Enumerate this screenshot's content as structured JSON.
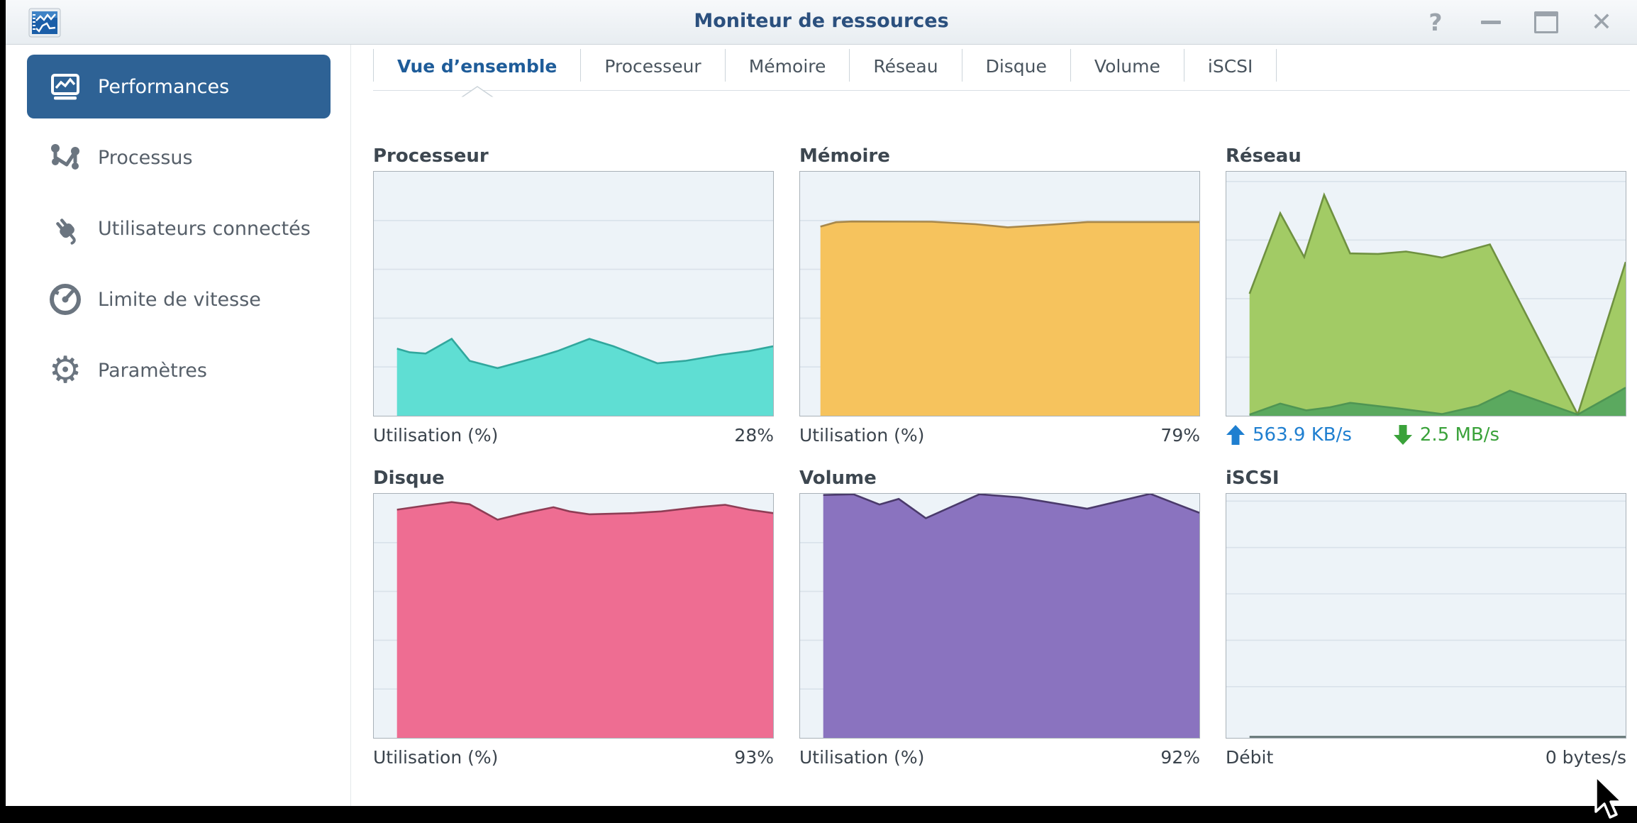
{
  "window": {
    "title": "Moniteur de ressources",
    "controls": {
      "help_label": "?",
      "minimize_name": "minimize",
      "maximize_name": "maximize",
      "close_label": "✕"
    }
  },
  "sidebar": {
    "items": [
      {
        "label": "Performances",
        "icon": "performance-chart-icon",
        "active": true
      },
      {
        "label": "Processus",
        "icon": "process-icon",
        "active": false
      },
      {
        "label": "Utilisateurs connectés",
        "icon": "plug-icon",
        "active": false
      },
      {
        "label": "Limite de vitesse",
        "icon": "speedometer-icon",
        "active": false
      },
      {
        "label": "Paramètres",
        "icon": "gear-icon",
        "active": false
      }
    ]
  },
  "tabs": [
    {
      "label": "Vue d’ensemble",
      "active": true
    },
    {
      "label": "Processeur",
      "active": false
    },
    {
      "label": "Mémoire",
      "active": false
    },
    {
      "label": "Réseau",
      "active": false
    },
    {
      "label": "Disque",
      "active": false
    },
    {
      "label": "Volume",
      "active": false
    },
    {
      "label": "iSCSI",
      "active": false
    }
  ],
  "panels": [
    {
      "id": "cpu",
      "title": "Processeur",
      "footer_label": "Utilisation (%)",
      "footer_value": "28%"
    },
    {
      "id": "memory",
      "title": "Mémoire",
      "footer_label": "Utilisation (%)",
      "footer_value": "79%"
    },
    {
      "id": "network",
      "title": "Réseau",
      "stats": [
        {
          "icon": "upload-arrow-icon",
          "text": "563.9 KB/s",
          "color": "#1f7fd0"
        },
        {
          "icon": "download-arrow-icon",
          "text": "2.5 MB/s",
          "color": "#3aa23a"
        }
      ]
    },
    {
      "id": "disk",
      "title": "Disque",
      "footer_label": "Utilisation (%)",
      "footer_value": "93%"
    },
    {
      "id": "volume",
      "title": "Volume",
      "footer_label": "Utilisation (%)",
      "footer_value": "92%"
    },
    {
      "id": "iscsi",
      "title": "iSCSI",
      "footer_label": "Débit",
      "footer_value": "0 bytes/s"
    }
  ],
  "chart_data": [
    {
      "id": "cpu",
      "type": "area",
      "title": "Processeur",
      "ylabel": "Utilisation (%)",
      "ylim": [
        0,
        100
      ],
      "current_value": "28%",
      "grid": [
        0.2,
        0.4,
        0.6,
        0.8
      ],
      "series": [
        {
          "name": "cpu-usage",
          "fill": "#5fded3",
          "stroke": "#31a79d",
          "points": [
            [
              5.8,
              27.5
            ],
            [
              9,
              26
            ],
            [
              13,
              25.5
            ],
            [
              19.5,
              31.5
            ],
            [
              24,
              22.5
            ],
            [
              31,
              19.5
            ],
            [
              41,
              24
            ],
            [
              46,
              26.5
            ],
            [
              54,
              31.5
            ],
            [
              60,
              28.5
            ],
            [
              71,
              21.5
            ],
            [
              78,
              22.5
            ],
            [
              87,
              25
            ],
            [
              94,
              26.5
            ],
            [
              100,
              28.5
            ]
          ]
        }
      ]
    },
    {
      "id": "memory",
      "type": "area",
      "title": "Mémoire",
      "ylabel": "Utilisation (%)",
      "ylim": [
        0,
        100
      ],
      "current_value": "79%",
      "grid": [
        0.2,
        0.4,
        0.6,
        0.8
      ],
      "series": [
        {
          "name": "memory-usage",
          "fill": "#f6c35d",
          "stroke": "#a8884b",
          "points": [
            [
              5.1,
              77.5
            ],
            [
              9,
              79.3
            ],
            [
              13,
              79.6
            ],
            [
              33,
              79.5
            ],
            [
              44,
              78.5
            ],
            [
              52,
              77.2
            ],
            [
              63,
              78.3
            ],
            [
              72,
              79.4
            ],
            [
              100,
              79.4
            ]
          ]
        }
      ]
    },
    {
      "id": "network",
      "type": "area",
      "title": "Réseau",
      "ylabel": "",
      "ylim": [
        0,
        100
      ],
      "current_upload": "563.9 KB/s",
      "current_download": "2.5 MB/s",
      "grid": [
        0.04,
        0.28,
        0.52,
        0.76
      ],
      "series": [
        {
          "name": "download",
          "fill": "#a2cb65",
          "stroke": "#6f9140",
          "points": [
            [
              5.8,
              50
            ],
            [
              13.5,
              83
            ],
            [
              19.5,
              65
            ],
            [
              24.5,
              90.5
            ],
            [
              31,
              66.5
            ],
            [
              38,
              66.3
            ],
            [
              45,
              67.3
            ],
            [
              50,
              66
            ],
            [
              54,
              64.8
            ],
            [
              66,
              70.2
            ],
            [
              88,
              0.5
            ],
            [
              100,
              63
            ]
          ]
        },
        {
          "name": "upload",
          "fill": "#5ba95f",
          "stroke": "#4f9553",
          "points": [
            [
              5.8,
              0.5
            ],
            [
              13.5,
              5
            ],
            [
              20,
              2.2
            ],
            [
              26,
              3.5
            ],
            [
              31,
              5.3
            ],
            [
              43,
              3
            ],
            [
              54,
              0.7
            ],
            [
              63,
              4
            ],
            [
              71,
              10.3
            ],
            [
              88,
              0.5
            ],
            [
              100,
              11.5
            ]
          ]
        }
      ]
    },
    {
      "id": "disk",
      "type": "area",
      "title": "Disque",
      "ylabel": "Utilisation (%)",
      "ylim": [
        0,
        100
      ],
      "current_value": "93%",
      "grid": [
        0.2,
        0.4,
        0.6,
        0.8
      ],
      "series": [
        {
          "name": "disk-usage",
          "fill": "#ee6d92",
          "stroke": "#8e3d55",
          "points": [
            [
              5.8,
              93.5
            ],
            [
              13,
              95.2
            ],
            [
              19.5,
              96.6
            ],
            [
              24,
              95.7
            ],
            [
              31,
              89.4
            ],
            [
              37,
              91.8
            ],
            [
              45,
              94.5
            ],
            [
              49,
              92.8
            ],
            [
              54,
              91.6
            ],
            [
              65,
              92.1
            ],
            [
              72,
              92.8
            ],
            [
              81,
              94.5
            ],
            [
              88,
              95.5
            ],
            [
              94,
              93.5
            ],
            [
              100,
              92.1
            ]
          ]
        }
      ]
    },
    {
      "id": "volume",
      "type": "area",
      "title": "Volume",
      "ylabel": "Utilisation (%)",
      "ylim": [
        0,
        100
      ],
      "current_value": "92%",
      "grid": [
        0.2,
        0.4,
        0.6,
        0.8
      ],
      "series": [
        {
          "name": "volume-usage",
          "fill": "#8a73bf",
          "stroke": "#4a3a6b",
          "points": [
            [
              5.8,
              99.5
            ],
            [
              13.4,
              99.8
            ],
            [
              19.9,
              95.6
            ],
            [
              24.7,
              97.9
            ],
            [
              31.5,
              90
            ],
            [
              44.9,
              99.8
            ],
            [
              50,
              99.2
            ],
            [
              55.1,
              98.5
            ],
            [
              71.9,
              93.9
            ],
            [
              87.7,
              100
            ],
            [
              93.5,
              96.3
            ],
            [
              100,
              92.2
            ]
          ]
        }
      ]
    },
    {
      "id": "iscsi",
      "type": "area",
      "title": "iSCSI",
      "ylabel": "Débit",
      "ylim": [
        0,
        100
      ],
      "current_value": "0 bytes/s",
      "grid": [
        0.03,
        0.22,
        0.41,
        0.6,
        0.79
      ],
      "series": [
        {
          "name": "iscsi-throughput",
          "fill": "none",
          "stroke": "#5f7070",
          "line_only": true,
          "points": [
            [
              5.8,
              0.4
            ],
            [
              100,
              0.4
            ]
          ]
        }
      ]
    }
  ],
  "colors": {
    "titlebar_title": "#2b507e",
    "sidebar_active_bg": "#2e6295",
    "tab_active": "#1e5c99",
    "chart_bg": "#edf3f8",
    "chart_grid": "#d9e2ea",
    "chart_border": "#a9b1b8",
    "upload_stat": "#1f7fd0",
    "download_stat": "#3aa23a"
  }
}
